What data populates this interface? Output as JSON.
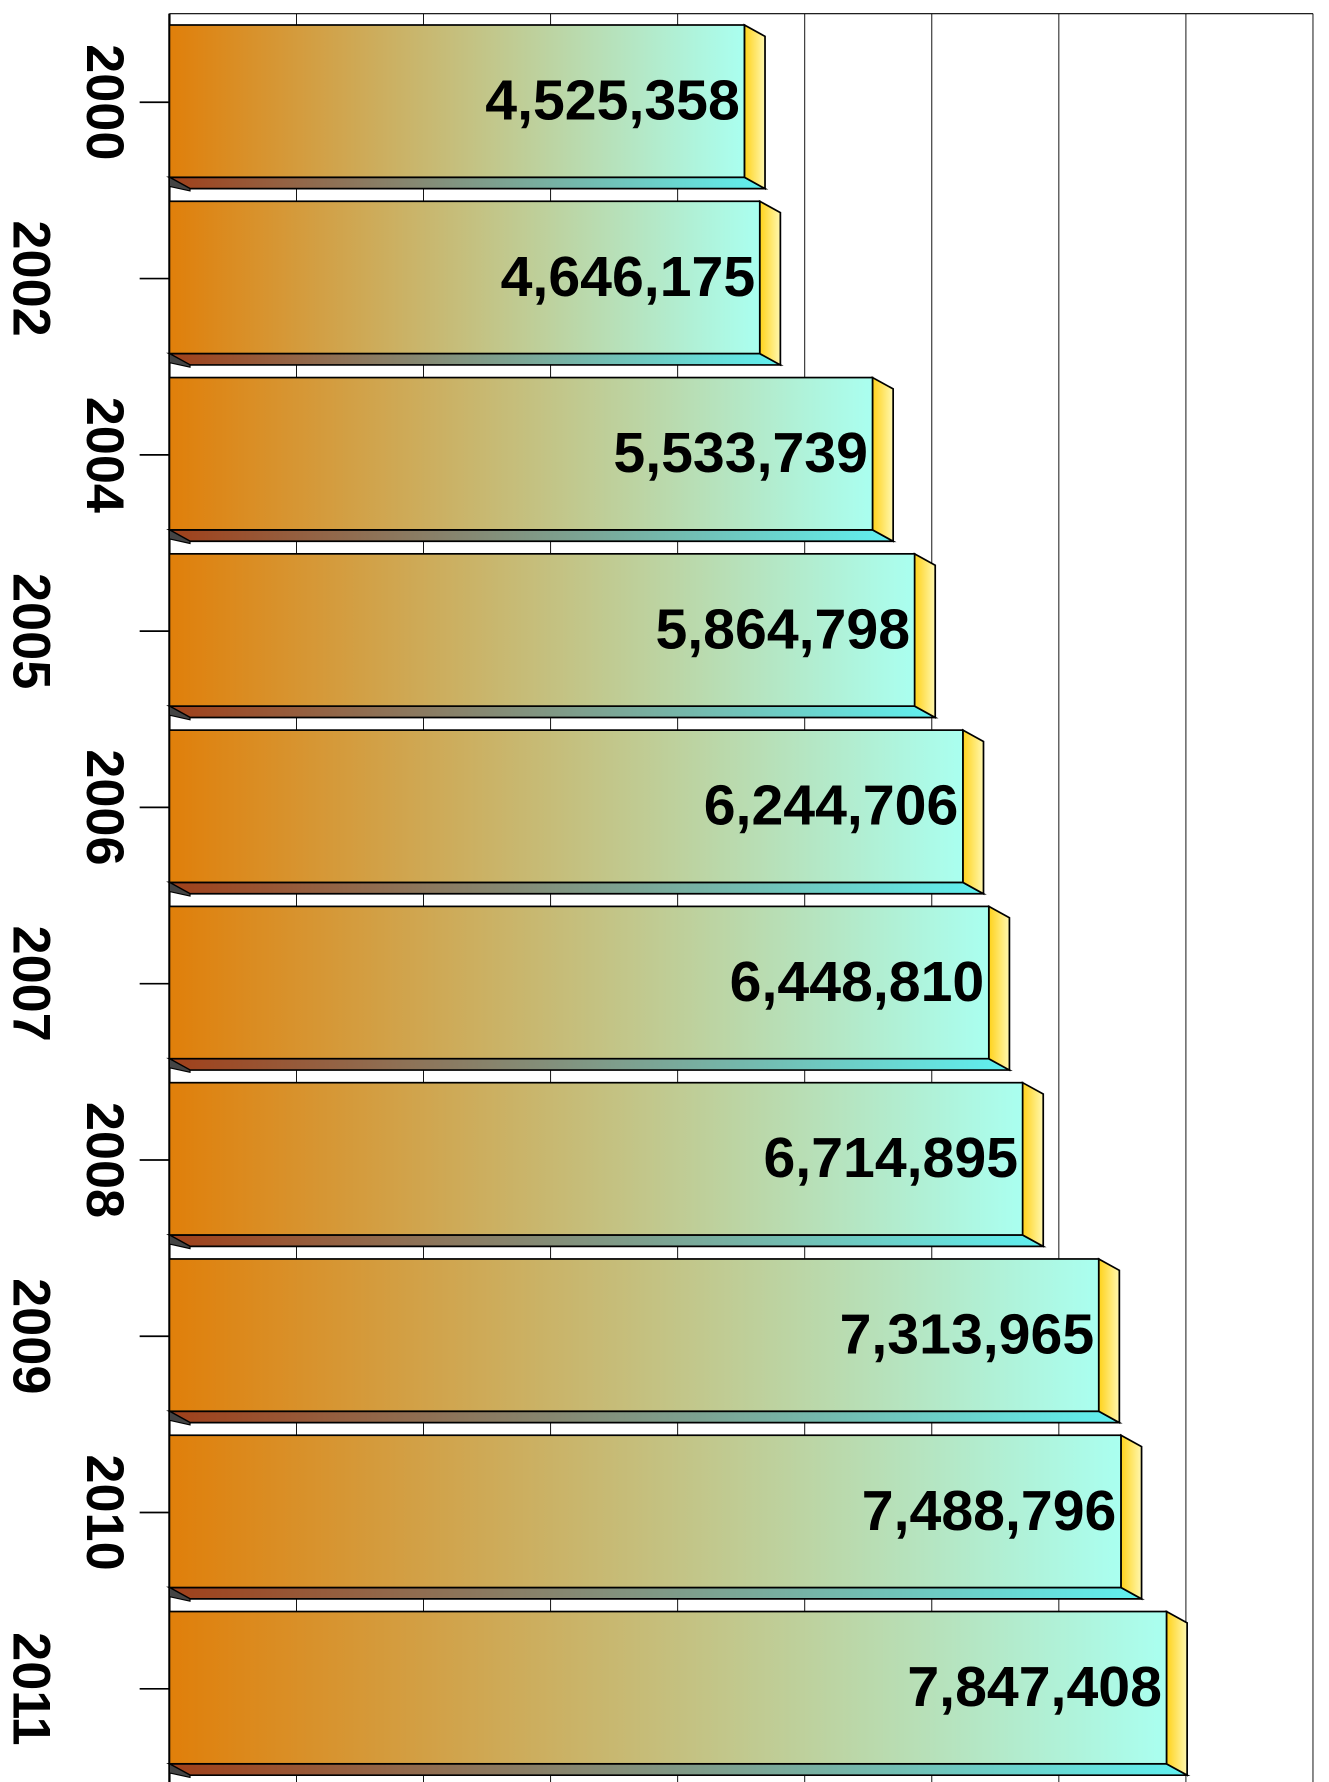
{
  "chart_data": {
    "type": "bar",
    "orientation": "horizontal",
    "categories": [
      "2000",
      "2002",
      "2004",
      "2005",
      "2006",
      "2007",
      "2008",
      "2009",
      "2010",
      "2011"
    ],
    "values": [
      4525358,
      4646175,
      5533739,
      5864798,
      6244706,
      6448810,
      6714895,
      7313965,
      7488796,
      7847408
    ],
    "value_labels": [
      "4,525,358",
      "4,646,175",
      "5,533,739",
      "5,864,798",
      "6,244,706",
      "6,448,810",
      "6,714,895",
      "7,313,965",
      "7,488,796",
      "7,847,408"
    ],
    "colors": [
      "#e07f0a",
      "#aafff0"
    ],
    "xlim": [
      0,
      9000000
    ],
    "xticks": [
      0,
      1000000,
      2000000,
      3000000,
      4000000,
      5000000,
      6000000,
      7000000,
      8000000,
      9000000
    ],
    "grid": true
  }
}
